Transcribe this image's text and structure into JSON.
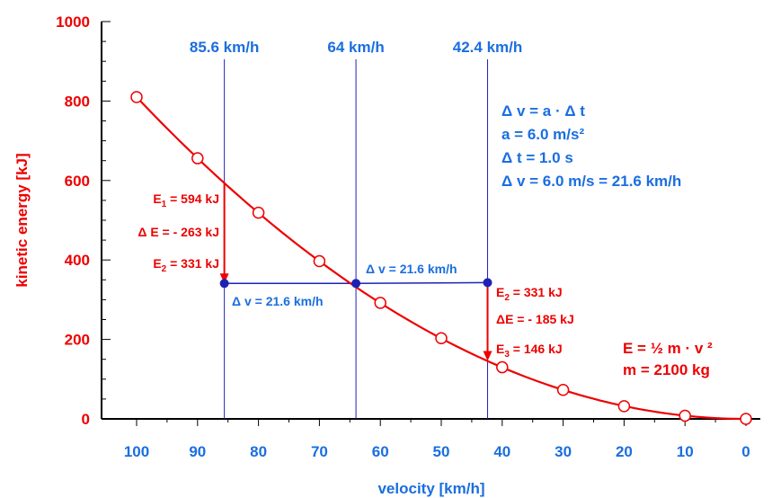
{
  "chart_data": {
    "type": "line",
    "xlabel": "velocity [km/h]",
    "ylabel": "kinetic energy [kJ]",
    "xlim": [
      100,
      0
    ],
    "ylim": [
      0,
      1000
    ],
    "x_ticks": [
      "100",
      "90",
      "80",
      "70",
      "60",
      "50",
      "40",
      "30",
      "20",
      "10",
      "0"
    ],
    "y_ticks": [
      "0",
      "200",
      "400",
      "600",
      "800",
      "1000"
    ],
    "grid": false,
    "series": [
      {
        "x": [
          100,
          90,
          80,
          70,
          60,
          50,
          40,
          30,
          20,
          10,
          0
        ],
        "values": [
          810,
          656,
          519,
          397,
          292,
          203,
          130,
          73,
          32,
          8,
          0
        ]
      }
    ],
    "markers": [
      {
        "x": 85.6,
        "y": 594
      },
      {
        "x": 64,
        "y": 331
      },
      {
        "x": 42.4,
        "y": 146
      }
    ],
    "vertical_lines": [
      {
        "x": 85.6,
        "label": "85.6 km/h"
      },
      {
        "x": 64,
        "label": "64 km/h"
      },
      {
        "x": 42.4,
        "label": "42.4 km/h"
      }
    ],
    "step_points": [
      {
        "x": 85.6,
        "y": 341
      },
      {
        "x": 64,
        "y": 341
      },
      {
        "x": 42.4,
        "y": 343
      }
    ],
    "arrows": [
      {
        "x": 85.6,
        "from_y": 594,
        "to_y": 341
      },
      {
        "x": 42.4,
        "from_y": 343,
        "to_y": 146
      }
    ],
    "annotations": {
      "e1_a": "E",
      "e1_sub": "1",
      "e1_b": " = 594 kJ",
      "de1": "Δ E = - 263 kJ",
      "e2l_a": "E",
      "e2l_sub": "2",
      "e2l_b": " = 331 kJ",
      "dv_low": "Δ v = 21.6 km/h",
      "dv_mid": "Δ v = 21.6 km/h",
      "e2r_a": "E",
      "e2r_sub": "2",
      "e2r_b": " = 331 kJ",
      "de2": "ΔE = - 185 kJ",
      "e3_a": "E",
      "e3_sub": "3",
      "e3_b": " = 146 kJ",
      "info_blue": [
        "Δ v = a · Δ t",
        "a = 6.0 m/s²",
        "Δ t = 1.0 s",
        "Δ v = 6.0 m/s = 21.6 km/h"
      ],
      "info_red": [
        "E = ½ m · v ²",
        "m = 2100 kg"
      ]
    },
    "colors": {
      "red": "#ee0000",
      "blue": "#1a6ee0",
      "navy": "#1e22b4",
      "axis": "#000000"
    }
  }
}
